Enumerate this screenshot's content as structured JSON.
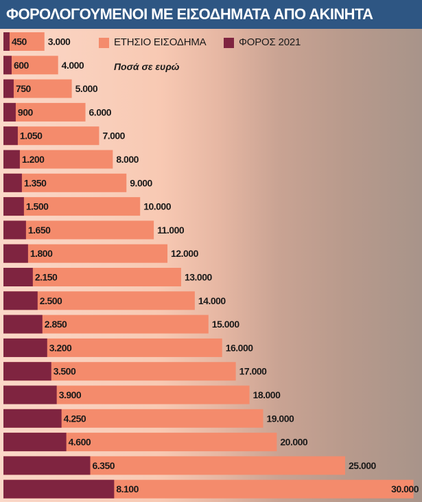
{
  "header": {
    "title": "ΦΟΡΟΛΟΓΟΥΜΕΝΟΙ ΜΕ ΕΙΣΟΔΗΜΑΤΑ ΑΠΟ ΑΚΙΝΗΤΑ"
  },
  "colors": {
    "income": "#f48b6c",
    "tax": "#7f2440",
    "header_bg": "#2e5683"
  },
  "chart_data": {
    "type": "bar",
    "orientation": "horizontal",
    "title": "ΦΟΡΟΛΟΓΟΥΜΕΝΟΙ ΜΕ ΕΙΣΟΔΗΜΑΤΑ ΑΠΟ ΑΚΙΝΗΤΑ",
    "units_note": "Ποσά σε ευρώ",
    "legend_position": "top",
    "overlapping": true,
    "xlim": [
      0,
      30000
    ],
    "series": [
      {
        "name": "ΕΤΗΣΙΟ ΕΙΣΟΔΗΜΑ",
        "values": [
          3000,
          4000,
          5000,
          6000,
          7000,
          8000,
          9000,
          10000,
          11000,
          12000,
          13000,
          14000,
          15000,
          16000,
          17000,
          18000,
          19000,
          20000,
          25000,
          30000
        ],
        "labels": [
          "3.000",
          "4.000",
          "5.000",
          "6.000",
          "7.000",
          "8.000",
          "9.000",
          "10.000",
          "11.000",
          "12.000",
          "13.000",
          "14.000",
          "15.000",
          "16.000",
          "17.000",
          "18.000",
          "19.000",
          "20.000",
          "25.000",
          "30.000"
        ]
      },
      {
        "name": "ΦΟΡΟΣ 2021",
        "values": [
          450,
          600,
          750,
          900,
          1050,
          1200,
          1350,
          1500,
          1650,
          1800,
          2150,
          2500,
          2850,
          3200,
          3500,
          3900,
          4250,
          4600,
          6350,
          8100
        ],
        "labels": [
          "450",
          "600",
          "750",
          "900",
          "1.050",
          "1.200",
          "1.350",
          "1.500",
          "1.650",
          "1.800",
          "2.150",
          "2.500",
          "2.850",
          "3.200",
          "3.500",
          "3.900",
          "4.250",
          "4.600",
          "6.350",
          "8.100"
        ]
      }
    ]
  }
}
